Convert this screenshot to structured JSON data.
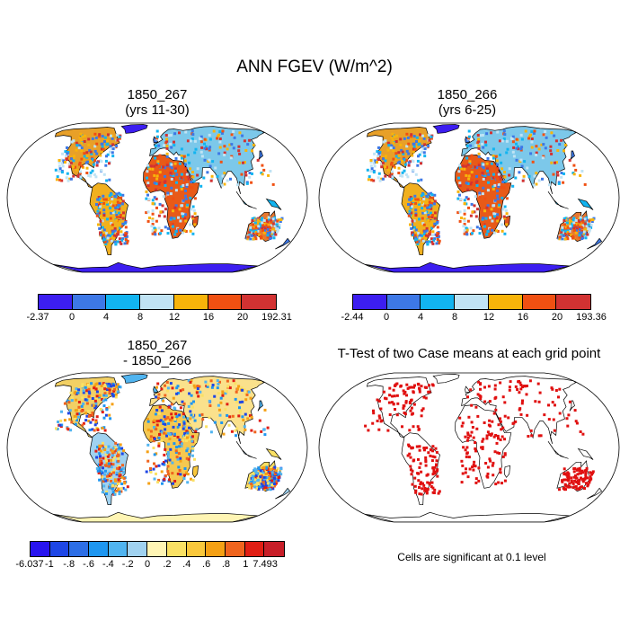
{
  "title": "ANN FGEV (W/m^2)",
  "panels": [
    {
      "title": "1850_267\n(yrs 11-30)",
      "colorbar": {
        "colors": [
          "#3c1ef0",
          "#3d78e6",
          "#12b4f0",
          "#c0e3f4",
          "#f8b40a",
          "#f05012",
          "#d23232"
        ],
        "labels": [
          "-2.37",
          "0",
          "4",
          "8",
          "12",
          "16",
          "20",
          "192.31"
        ]
      }
    },
    {
      "title": "1850_266\n(yrs 6-25)",
      "colorbar": {
        "colors": [
          "#3c1ef0",
          "#3d78e6",
          "#12b4f0",
          "#c0e3f4",
          "#f8b40a",
          "#f05012",
          "#d23232"
        ],
        "labels": [
          "-2.44",
          "0",
          "4",
          "8",
          "12",
          "16",
          "20",
          "193.36"
        ]
      }
    },
    {
      "title": "1850_267\n- 1850_266",
      "colorbar": {
        "colors": [
          "#2814f0",
          "#1e46e6",
          "#2d6ee6",
          "#1e96f0",
          "#50b4f0",
          "#a0d2f0",
          "#fff5b4",
          "#fae164",
          "#fac83c",
          "#f5a014",
          "#f0641e",
          "#e11e14",
          "#c81e28"
        ],
        "labels": [
          "-6.037",
          "-1",
          "-.8",
          "-.6",
          "-.4",
          "-.2",
          "0",
          ".2",
          ".4",
          ".6",
          ".8",
          "1",
          "7.493"
        ]
      }
    },
    {
      "title": "T-Test of two Case means at each grid point",
      "note": "Cells are significant at 0.1 level"
    }
  ]
}
